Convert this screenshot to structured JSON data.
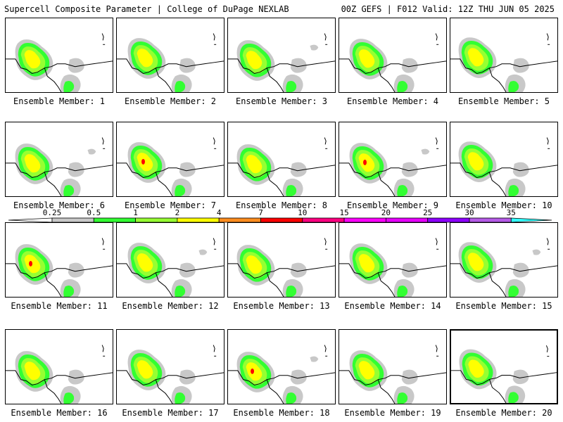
{
  "header": {
    "left": "Supercell Composite Parameter | College of DuPage NEXLAB",
    "right": "00Z GEFS | F012 Valid: 12Z THU JUN 05 2025"
  },
  "panel_label_prefix": "Ensemble Member: ",
  "selected_member": 20,
  "members": [
    {
      "id": 1,
      "label": "1"
    },
    {
      "id": 2,
      "label": "2"
    },
    {
      "id": 3,
      "label": "3"
    },
    {
      "id": 4,
      "label": "4"
    },
    {
      "id": 5,
      "label": "5"
    },
    {
      "id": 6,
      "label": "6"
    },
    {
      "id": 7,
      "label": "7"
    },
    {
      "id": 8,
      "label": "8"
    },
    {
      "id": 9,
      "label": "9"
    },
    {
      "id": 10,
      "label": "10"
    },
    {
      "id": 11,
      "label": "11"
    },
    {
      "id": 12,
      "label": "12"
    },
    {
      "id": 13,
      "label": "13"
    },
    {
      "id": 14,
      "label": "14"
    },
    {
      "id": 15,
      "label": "15"
    },
    {
      "id": 16,
      "label": "16"
    },
    {
      "id": 17,
      "label": "17"
    },
    {
      "id": 18,
      "label": "18"
    },
    {
      "id": 19,
      "label": "19"
    },
    {
      "id": 20,
      "label": "20"
    }
  ],
  "colorbar": {
    "ticks": [
      "0.25",
      "0.5",
      "1",
      "2",
      "4",
      "7",
      "10",
      "15",
      "20",
      "25",
      "30",
      "35"
    ],
    "colors": [
      "#c8c8c8",
      "#32ff32",
      "#96ff32",
      "#ffff00",
      "#ff8c1e",
      "#ff0000",
      "#ff0080",
      "#ff00ff",
      "#e600ff",
      "#8c00ff",
      "#b45ae6",
      "#32ffff"
    ]
  }
}
